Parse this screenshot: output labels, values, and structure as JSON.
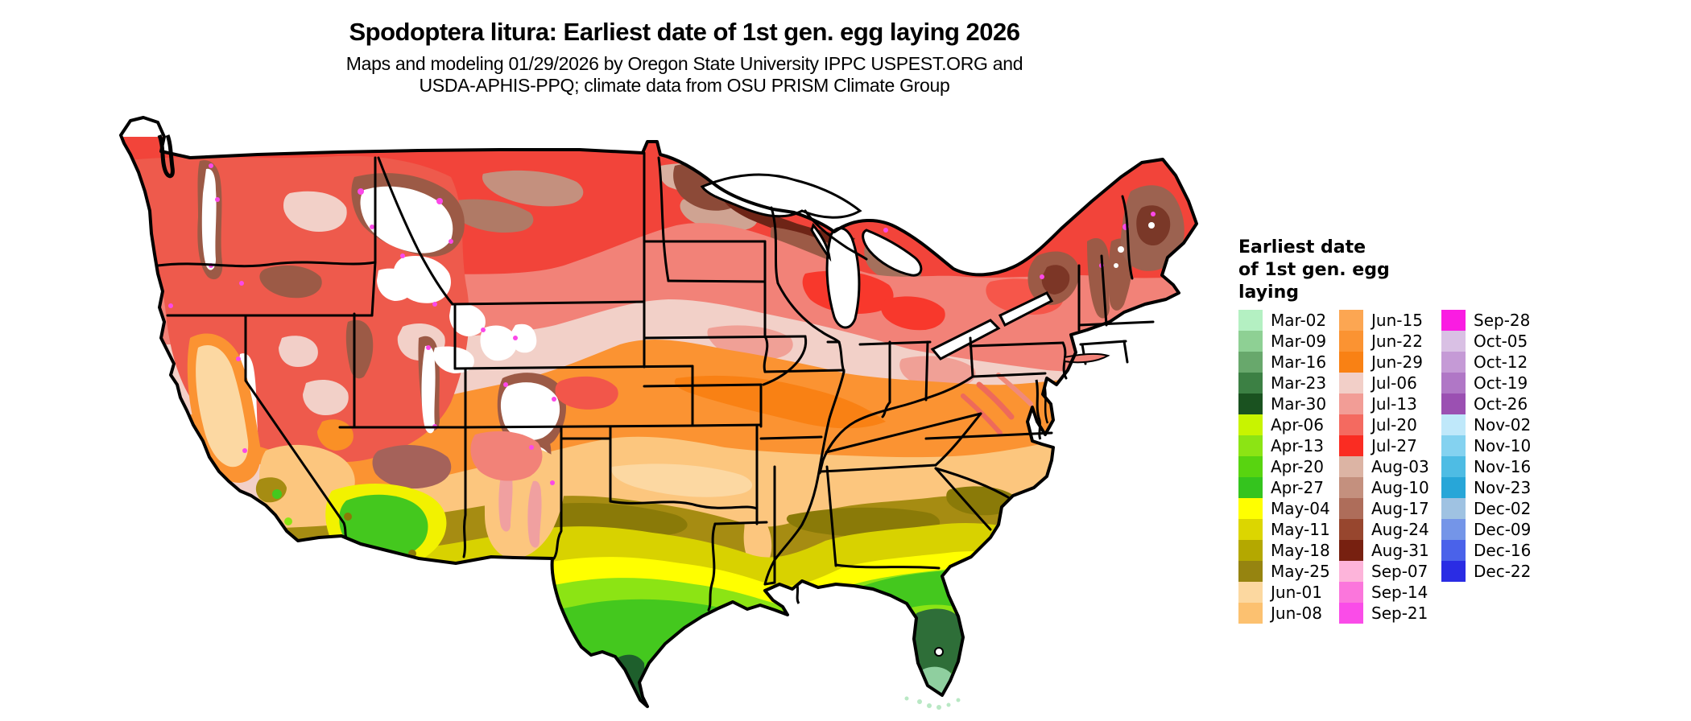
{
  "header": {
    "title": "Spodoptera litura: Earliest date of 1st gen. egg laying 2026",
    "subtitle_line1": "Maps and modeling 01/29/2026 by Oregon State University IPPC USPEST.ORG and",
    "subtitle_line2": "USDA-APHIS-PPQ; climate data from OSU PRISM Climate Group"
  },
  "legend": {
    "title": "Earliest date\nof 1st gen. egg\nlaying",
    "column_sizes": [
      15,
      15,
      13
    ]
  },
  "chart_data": {
    "type": "choropleth_map",
    "region": "Continental United States",
    "title": "Spodoptera litura: Earliest date of 1st gen. egg laying 2026",
    "legend_title": "Earliest date of 1st gen. egg laying",
    "buckets": [
      {
        "label": "Mar-02",
        "color": "#b4f0c2"
      },
      {
        "label": "Mar-09",
        "color": "#8ed094"
      },
      {
        "label": "Mar-16",
        "color": "#68a86c"
      },
      {
        "label": "Mar-23",
        "color": "#3c8044"
      },
      {
        "label": "Mar-30",
        "color": "#1a5220"
      },
      {
        "label": "Apr-06",
        "color": "#c8f400"
      },
      {
        "label": "Apr-13",
        "color": "#8ce414"
      },
      {
        "label": "Apr-20",
        "color": "#58d410"
      },
      {
        "label": "Apr-27",
        "color": "#34c41e"
      },
      {
        "label": "May-04",
        "color": "#ffff00"
      },
      {
        "label": "May-11",
        "color": "#dcd600"
      },
      {
        "label": "May-18",
        "color": "#b4a800"
      },
      {
        "label": "May-25",
        "color": "#968410"
      },
      {
        "label": "Jun-01",
        "color": "#fcd8a0"
      },
      {
        "label": "Jun-08",
        "color": "#fcc170"
      },
      {
        "label": "Jun-15",
        "color": "#fca652"
      },
      {
        "label": "Jun-22",
        "color": "#fb9332"
      },
      {
        "label": "Jun-29",
        "color": "#f98114"
      },
      {
        "label": "Jul-06",
        "color": "#f2cfc8"
      },
      {
        "label": "Jul-13",
        "color": "#f29d96"
      },
      {
        "label": "Jul-20",
        "color": "#f46a60"
      },
      {
        "label": "Jul-27",
        "color": "#fa2c22"
      },
      {
        "label": "Aug-03",
        "color": "#dcb4a4"
      },
      {
        "label": "Aug-10",
        "color": "#c4907e"
      },
      {
        "label": "Aug-17",
        "color": "#ae6d5a"
      },
      {
        "label": "Aug-24",
        "color": "#97462e"
      },
      {
        "label": "Aug-31",
        "color": "#772010"
      },
      {
        "label": "Sep-07",
        "color": "#fdb4da"
      },
      {
        "label": "Sep-14",
        "color": "#fb76dc"
      },
      {
        "label": "Sep-21",
        "color": "#fa4ce8"
      },
      {
        "label": "Sep-28",
        "color": "#fa1ce2"
      },
      {
        "label": "Oct-05",
        "color": "#d9c0e4"
      },
      {
        "label": "Oct-12",
        "color": "#c59ad6"
      },
      {
        "label": "Oct-19",
        "color": "#b077c6"
      },
      {
        "label": "Oct-26",
        "color": "#9b50b2"
      },
      {
        "label": "Nov-02",
        "color": "#bfe8fa"
      },
      {
        "label": "Nov-10",
        "color": "#84d2f0"
      },
      {
        "label": "Nov-16",
        "color": "#4ebce4"
      },
      {
        "label": "Nov-23",
        "color": "#28a6d8"
      },
      {
        "label": "Dec-02",
        "color": "#9fc2e2"
      },
      {
        "label": "Dec-09",
        "color": "#7495e8"
      },
      {
        "label": "Dec-16",
        "color": "#4a62ea"
      },
      {
        "label": "Dec-22",
        "color": "#2a2ce4"
      }
    ],
    "regional_pattern": {
      "northern_tier_and_mountains": "Jul-27 through Aug-31 (reds and browns), white = no egg laying predicted",
      "central_plains_and_midwest": "Jun-22 through Jul-13 (oranges and pale pinks)",
      "southern_plains_and_southeast": "May-04 through Jun-08 (yellows, olives, peach)",
      "gulf_coast": "Apr-13 through Apr-27 (greens)",
      "south_texas_and_central_florida": "Mar-16 through Mar-30 (dark greens)",
      "south_florida_tip_and_keys": "Mar-02 to Mar-09 (pale mint green)"
    }
  }
}
